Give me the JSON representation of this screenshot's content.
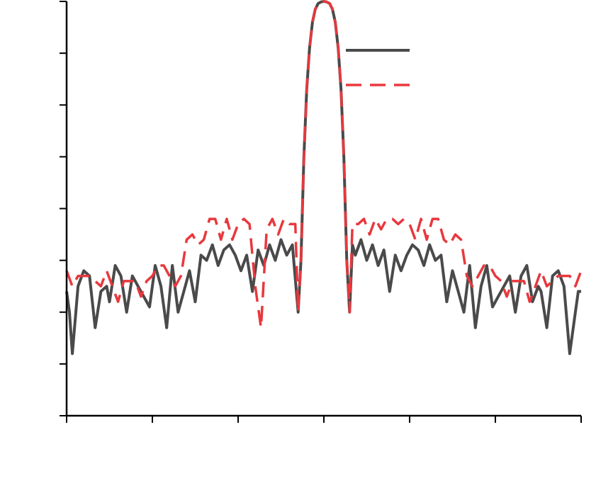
{
  "chart_data": {
    "type": "line",
    "title": "",
    "xlabel": "",
    "ylabel": "",
    "xlim": [
      -90,
      90
    ],
    "ylim": [
      -8,
      0
    ],
    "x_ticks": [
      -90,
      -60,
      -30,
      0,
      30,
      60,
      90
    ],
    "y_ticks": [
      -8,
      -7,
      -6,
      -5,
      -4,
      -3,
      -2,
      -1,
      0
    ],
    "x_tick_labels": [
      "",
      "",
      "",
      "",
      "",
      "",
      ""
    ],
    "y_tick_labels": [
      "",
      "",
      "",
      "",
      "",
      "",
      "",
      "",
      ""
    ],
    "grid": false,
    "legend_position": "top-right",
    "series": [
      {
        "name": "",
        "color": "#4a4a4a",
        "dash": "solid",
        "x": [
          -90,
          -89,
          -88,
          -86,
          -84,
          -82,
          -80,
          -78,
          -76,
          -75,
          -73,
          -71,
          -69,
          -67,
          -65,
          -63,
          -61,
          -59,
          -57,
          -55,
          -53,
          -51,
          -49,
          -47,
          -45,
          -43,
          -41,
          -39,
          -37,
          -35,
          -33,
          -31,
          -29,
          -27,
          -25,
          -23,
          -21,
          -19,
          -17,
          -15,
          -13,
          -11,
          -9,
          -8,
          -7,
          -6,
          -5,
          -4,
          -3,
          -2,
          -1,
          0,
          1,
          2,
          3,
          4,
          5,
          6,
          7,
          8,
          9,
          10,
          11,
          13,
          15,
          17,
          19,
          21,
          23,
          25,
          27,
          29,
          31,
          33,
          35,
          37,
          39,
          41,
          43,
          45,
          47,
          49,
          51,
          53,
          55,
          57,
          59,
          61,
          63,
          65,
          67,
          69,
          71,
          73,
          75,
          76,
          78,
          80,
          82,
          84,
          86,
          88,
          89,
          90
        ],
        "y": [
          -5.6,
          -6.0,
          -6.8,
          -5.5,
          -5.2,
          -5.3,
          -6.3,
          -5.6,
          -5.5,
          -5.8,
          -5.1,
          -5.3,
          -6.0,
          -5.3,
          -5.5,
          -5.7,
          -5.9,
          -5.1,
          -5.5,
          -6.3,
          -5.1,
          -6.0,
          -5.6,
          -5.2,
          -5.8,
          -4.9,
          -5.0,
          -4.7,
          -5.1,
          -4.8,
          -4.7,
          -4.9,
          -5.2,
          -4.9,
          -5.6,
          -4.8,
          -5.1,
          -4.7,
          -5.0,
          -4.6,
          -4.9,
          -4.7,
          -6.0,
          -5.0,
          -3.0,
          -1.7,
          -0.9,
          -0.4,
          -0.15,
          -0.04,
          -0.01,
          0.0,
          -0.01,
          -0.04,
          -0.15,
          -0.4,
          -0.9,
          -1.7,
          -3.0,
          -5.0,
          -6.0,
          -4.7,
          -4.9,
          -4.6,
          -5.0,
          -4.7,
          -5.1,
          -4.8,
          -5.6,
          -4.9,
          -5.2,
          -4.9,
          -4.7,
          -4.8,
          -5.1,
          -4.7,
          -5.0,
          -4.9,
          -5.8,
          -5.2,
          -5.6,
          -6.0,
          -5.1,
          -6.3,
          -5.5,
          -5.1,
          -5.9,
          -5.7,
          -5.5,
          -5.3,
          -6.0,
          -5.3,
          -5.1,
          -5.8,
          -5.5,
          -5.6,
          -6.3,
          -5.3,
          -5.2,
          -5.5,
          -6.8,
          -6.0,
          -5.6,
          -5.6
        ]
      },
      {
        "name": "",
        "color": "#e8383d",
        "dash": "dashed",
        "x": [
          -90,
          -88,
          -86,
          -84,
          -82,
          -80,
          -78,
          -76,
          -74,
          -72,
          -70,
          -68,
          -66,
          -64,
          -62,
          -60,
          -58,
          -56,
          -54,
          -52,
          -50,
          -48,
          -46,
          -44,
          -42,
          -40,
          -38,
          -36,
          -34,
          -32,
          -30,
          -28,
          -26,
          -24,
          -22,
          -20,
          -18,
          -16,
          -14,
          -12,
          -10,
          -9,
          -8,
          -7,
          -6,
          -5,
          -4,
          -3,
          -2,
          -1,
          0,
          1,
          2,
          3,
          4,
          5,
          6,
          7,
          8,
          9,
          10,
          12,
          14,
          16,
          18,
          20,
          22,
          24,
          26,
          28,
          30,
          32,
          34,
          36,
          38,
          40,
          42,
          44,
          46,
          48,
          50,
          52,
          54,
          56,
          58,
          60,
          62,
          64,
          66,
          68,
          70,
          72,
          74,
          76,
          78,
          80,
          82,
          84,
          86,
          88,
          90
        ],
        "y": [
          -5.2,
          -5.5,
          -5.3,
          -5.3,
          -5.3,
          -5.4,
          -5.5,
          -5.2,
          -5.5,
          -5.8,
          -5.4,
          -5.4,
          -5.4,
          -5.7,
          -5.4,
          -5.3,
          -5.1,
          -5.1,
          -5.3,
          -5.5,
          -5.3,
          -4.6,
          -4.5,
          -4.7,
          -4.6,
          -4.2,
          -4.2,
          -4.6,
          -4.2,
          -4.6,
          -4.3,
          -4.2,
          -4.3,
          -5.5,
          -6.3,
          -4.4,
          -4.2,
          -4.5,
          -4.2,
          -4.3,
          -4.3,
          -6.0,
          -5.0,
          -3.0,
          -1.7,
          -0.9,
          -0.4,
          -0.15,
          -0.04,
          -0.01,
          0.0,
          -0.01,
          -0.04,
          -0.15,
          -0.4,
          -0.9,
          -1.7,
          -3.0,
          -5.0,
          -6.0,
          -4.3,
          -4.3,
          -4.2,
          -4.5,
          -4.2,
          -4.4,
          -4.2,
          -4.2,
          -4.3,
          -4.2,
          -4.3,
          -4.6,
          -4.2,
          -4.6,
          -4.2,
          -4.2,
          -4.6,
          -4.7,
          -4.5,
          -4.6,
          -5.3,
          -5.5,
          -5.3,
          -5.1,
          -5.1,
          -5.3,
          -5.4,
          -5.7,
          -5.4,
          -5.4,
          -5.4,
          -5.8,
          -5.5,
          -5.2,
          -5.5,
          -5.4,
          -5.3,
          -5.3,
          -5.3,
          -5.5,
          -5.2
        ]
      }
    ]
  }
}
